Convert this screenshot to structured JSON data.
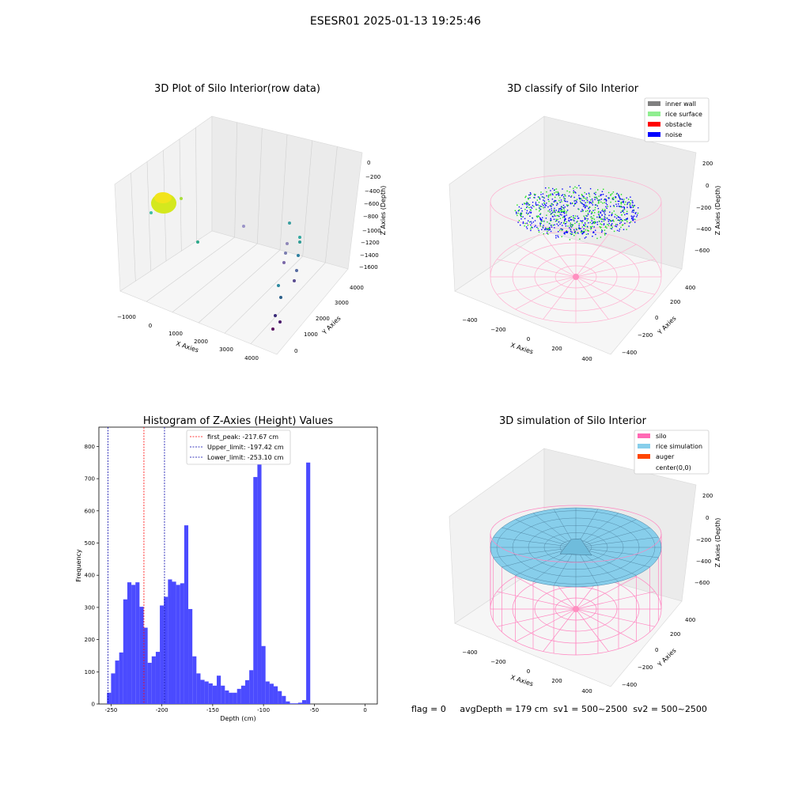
{
  "figure_title": "ESESR01 2025-01-13 19:25:46",
  "status_line": "flag = 0     avgDepth = 179 cm  sv1 = 500~2500  sv2 = 500~2500",
  "chart_data": [
    {
      "type": "scatter",
      "title": "3D Plot of Silo Interior(row data)",
      "xlabel": "X Axies",
      "ylabel": "Y Axies",
      "zlabel": "Z Axies (Depth)",
      "x_ticks": [
        "−1000",
        "0",
        "1000",
        "2000",
        "3000",
        "4000"
      ],
      "y_ticks": [
        "0",
        "1000",
        "2000",
        "3000",
        "4000"
      ],
      "z_ticks": [
        "0",
        "−200",
        "−400",
        "−600",
        "−800",
        "−1000",
        "−1200",
        "−1400",
        "−1600"
      ],
      "colors": {
        "cluster": "#c8e020",
        "points": "#2a9d8f"
      }
    },
    {
      "type": "scatter",
      "title": "3D classify of Silo Interior",
      "xlabel": "X Axies",
      "ylabel": "Y Axies",
      "zlabel": "Z Axies (Depth)",
      "x_ticks": [
        "−400",
        "−200",
        "0",
        "200",
        "400"
      ],
      "y_ticks": [
        "−400",
        "−200",
        "0",
        "200",
        "400"
      ],
      "z_ticks": [
        "200",
        "0",
        "−200",
        "−400",
        "−600"
      ],
      "legend": [
        {
          "label": "inner wall",
          "color": "#808080"
        },
        {
          "label": "rice surface",
          "color": "#90ee90"
        },
        {
          "label": "obstacle",
          "color": "#ff0000"
        },
        {
          "label": "noise",
          "color": "#0000ff"
        }
      ]
    },
    {
      "type": "bar",
      "title": "Histogram of Z-Axies (Height) Values",
      "xlabel": "Depth (cm)",
      "ylabel": "Frequency",
      "xlim": [
        -262,
        12
      ],
      "ylim": [
        0,
        860
      ],
      "x_ticks": [
        -250,
        -200,
        -150,
        -100,
        -50,
        0
      ],
      "y_ticks": [
        0,
        100,
        200,
        300,
        400,
        500,
        600,
        700,
        800
      ],
      "bin_start": -254,
      "bin_width": 4,
      "values": [
        35,
        95,
        135,
        160,
        325,
        378,
        370,
        378,
        302,
        237,
        128,
        148,
        162,
        306,
        333,
        387,
        380,
        370,
        375,
        555,
        295,
        148,
        95,
        75,
        70,
        64,
        57,
        88,
        57,
        42,
        35,
        35,
        47,
        57,
        74,
        105,
        705,
        815,
        180,
        70,
        63,
        55,
        40,
        25,
        8,
        2,
        2,
        4,
        12,
        750
      ],
      "bar_color": "#4b4bff",
      "lines": [
        {
          "label": "first_peak: -217.67 cm",
          "value": -217.67,
          "color": "#ff0000"
        },
        {
          "label": "Upper_limit: -197.42 cm",
          "value": -197.42,
          "color": "#0000aa"
        },
        {
          "label": "Lower_limit: -253.10 cm",
          "value": -253.1,
          "color": "#0000aa"
        }
      ]
    },
    {
      "type": "surface",
      "title": "3D simulation of Silo Interior",
      "xlabel": "X Axies",
      "ylabel": "Y Axies",
      "zlabel": "Z Axies (Depth)",
      "x_ticks": [
        "−400",
        "−200",
        "0",
        "200",
        "400"
      ],
      "y_ticks": [
        "−400",
        "−200",
        "0",
        "200",
        "400"
      ],
      "z_ticks": [
        "200",
        "0",
        "−200",
        "−400",
        "−600"
      ],
      "legend": [
        {
          "label": "silo",
          "color": "#ff69b4"
        },
        {
          "label": "rice simulation",
          "color": "#87ceeb"
        },
        {
          "label": "auger",
          "color": "#ff4500"
        },
        {
          "label": "center(0,0)",
          "color": "#ffffff"
        }
      ]
    }
  ]
}
